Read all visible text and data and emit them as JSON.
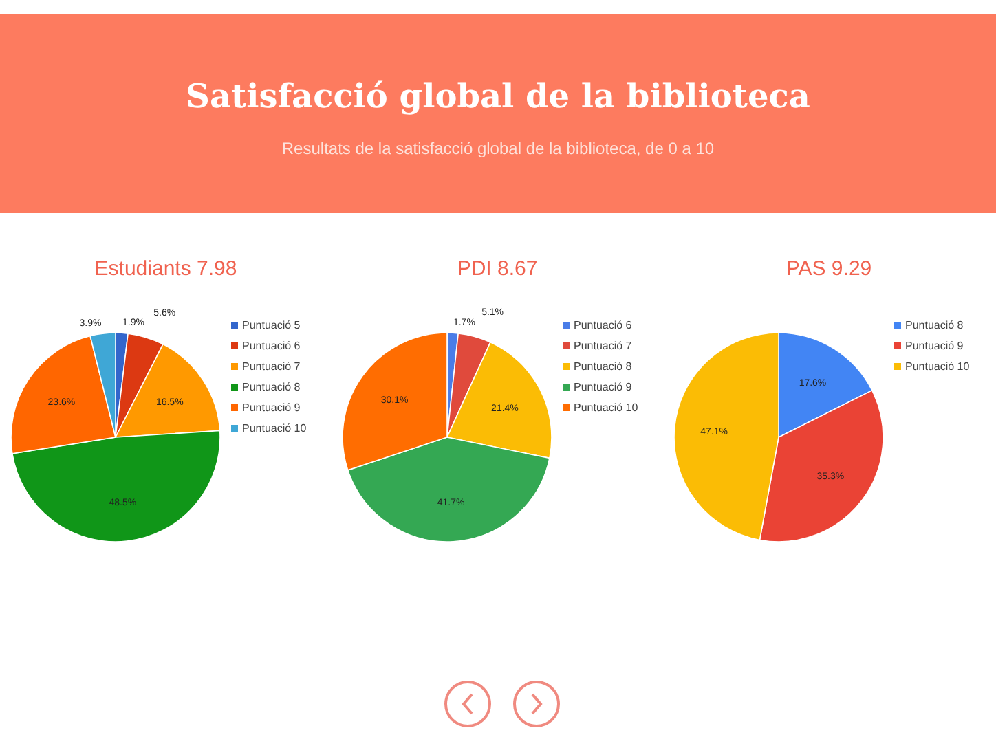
{
  "chart_data": [
    {
      "type": "other",
      "title": "Satisfacció global de la biblioteca",
      "subtitle": "Resultats de la satisfacció global de la biblioteca, de 0 a 10"
    },
    {
      "type": "pie",
      "title": "Estudiants 7.98",
      "categories": [
        "Puntuació 5",
        "Puntuació 6",
        "Puntuació 7",
        "Puntuació 8",
        "Puntuació 9",
        "Puntuació 10"
      ],
      "values": [
        1.9,
        5.6,
        16.5,
        48.5,
        23.6,
        3.9
      ],
      "value_labels": [
        "1.9%",
        "5.6%",
        "16.5%",
        "48.5%",
        "23.6%",
        "3.9%"
      ],
      "colors": [
        "#3366cc",
        "#dc3912",
        "#ff9900",
        "#109618",
        "#ff6600",
        "#3fa7d6"
      ],
      "legend": "right"
    },
    {
      "type": "pie",
      "title": "PDI 8.67",
      "categories": [
        "Puntuació 6",
        "Puntuació 7",
        "Puntuació 8",
        "Puntuació 9",
        "Puntuació 10"
      ],
      "values": [
        1.7,
        5.1,
        21.4,
        41.7,
        30.1
      ],
      "value_labels": [
        "1.7%",
        "5.1%",
        "21.4%",
        "41.7%",
        "30.1%"
      ],
      "colors": [
        "#4a7de8",
        "#e04a3c",
        "#fbbc05",
        "#34a853",
        "#ff6d01"
      ],
      "legend": "right"
    },
    {
      "type": "pie",
      "title": "PAS 9.29",
      "categories": [
        "Puntuació 8",
        "Puntuació 9",
        "Puntuació 10"
      ],
      "values": [
        17.6,
        35.3,
        47.1
      ],
      "value_labels": [
        "17.6%",
        "35.3%",
        "47.1%"
      ],
      "colors": [
        "#4285f4",
        "#ea4335",
        "#fbbc05"
      ],
      "legend": "right"
    }
  ]
}
